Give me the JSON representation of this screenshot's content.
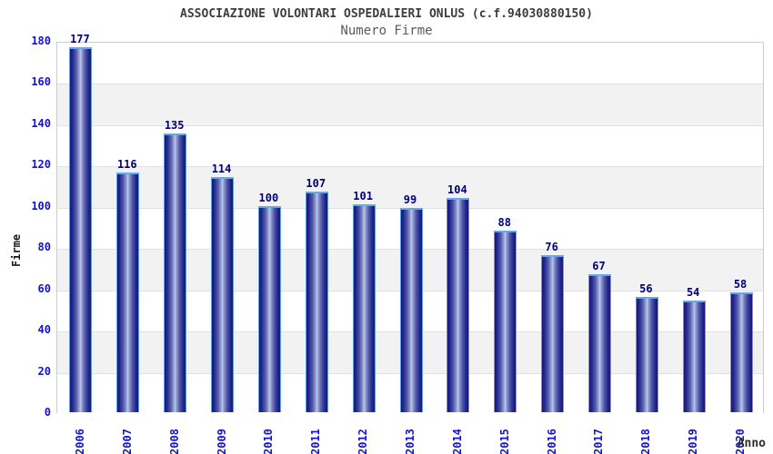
{
  "header": {
    "title": "ASSOCIAZIONE VOLONTARI OSPEDALIERI ONLUS (c.f.94030880150)",
    "subtitle": "Numero Firme"
  },
  "chart_data": {
    "type": "bar",
    "title": "ASSOCIAZIONE VOLONTARI OSPEDALIERI ONLUS (c.f.94030880150)",
    "subtitle": "Numero Firme",
    "xlabel": "Anno",
    "ylabel": "Firme",
    "categories": [
      "2006",
      "2007",
      "2008",
      "2009",
      "2010",
      "2011",
      "2012",
      "2013",
      "2014",
      "2015",
      "2016",
      "2017",
      "2018",
      "2019",
      "2020"
    ],
    "values": [
      177,
      116,
      135,
      114,
      100,
      107,
      101,
      99,
      104,
      88,
      76,
      67,
      56,
      54,
      58
    ],
    "ylim": [
      0,
      180
    ],
    "ytick_step": 20,
    "grid": true,
    "legend": "none",
    "band_fill": "alternating horizontal bands every 20 units"
  },
  "colors": {
    "axis_text": "#1414cc",
    "value_label": "#00007d",
    "title_text": "#3d3d3d",
    "subtitle_text": "#5a5a5a",
    "band_gray": "#f2f2f2",
    "gridline": "#e0e0e0",
    "plot_border": "#cccccc",
    "bar_dark_edge": "#181874",
    "bar_center_highlight": "#c4cbec",
    "bar_top_highlight": "#64a8f0"
  }
}
